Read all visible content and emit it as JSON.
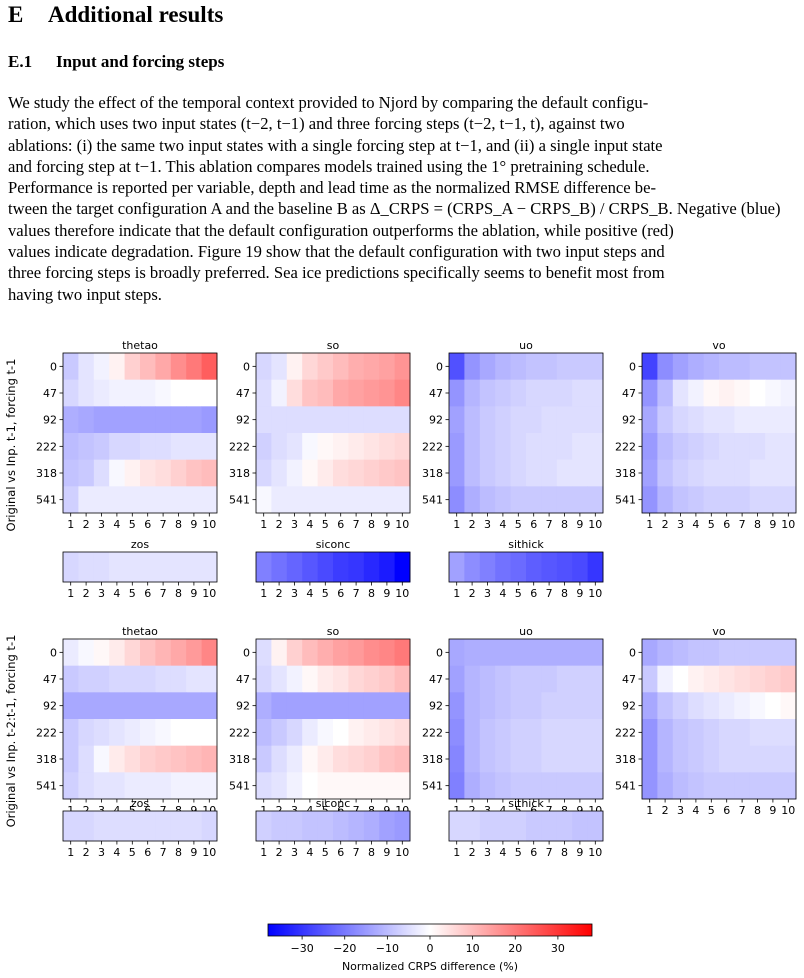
{
  "section": {
    "number": "E",
    "title": "Additional results"
  },
  "subsection": {
    "number": "E.1",
    "title": "Input and forcing steps"
  },
  "paragraph_lines": [
    "We study the effect of the temporal context provided to Njord by comparing the default configu-",
    "ration, which uses two input states (t−2, t−1) and three forcing steps (t−2, t−1, t), against two",
    "ablations: (i) the same two input states with a single forcing step at t−1, and (ii) a single input state",
    "and forcing step at t−1. This ablation compares models trained using the 1° pretraining schedule.",
    "Performance is reported per variable, depth and lead time as the normalized RMSE difference be-",
    "tween the target configuration A and the baseline B as Δ_CRPS = (CRPS_A − CRPS_B) / CRPS_B. Negative (blue)",
    "values therefore indicate that the default configuration outperforms the ablation, while positive (red)",
    "values indicate degradation. Figure 19 show that the default configuration with two input steps and",
    "three forcing steps is broadly preferred. Sea ice predictions specifically seems to benefit most from",
    "having two input steps."
  ],
  "chart_data": {
    "type": "heatmap",
    "depth_labels": [
      "0",
      "47",
      "92",
      "222",
      "318",
      "541"
    ],
    "lead_labels": [
      "1",
      "2",
      "3",
      "4",
      "5",
      "6",
      "7",
      "8",
      "9",
      "10"
    ],
    "colorbar": {
      "label": "Normalized CRPS difference (%)",
      "range": [
        -38,
        38
      ],
      "ticks": [
        -30,
        -20,
        -10,
        0,
        10,
        20,
        30
      ],
      "tick_labels": [
        "−30",
        "−20",
        "−10",
        "0",
        "10",
        "20",
        "30"
      ],
      "colormap": "bwr"
    },
    "panels": [
      {
        "row_label": "Original vs Inp. t-1, forcing t-1",
        "variables": [
          {
            "name": "thetao",
            "kind": "depth",
            "values": [
              [
                -8,
                -4,
                -2,
                2,
                7,
                10,
                13,
                17,
                20,
                24
              ],
              [
                -6,
                -4,
                -3,
                -2,
                -2,
                -2,
                -1,
                0,
                0,
                0
              ],
              [
                -12,
                -13,
                -14,
                -14,
                -14,
                -14,
                -14,
                -14,
                -14,
                -15
              ],
              [
                -10,
                -9,
                -8,
                -6,
                -6,
                -5,
                -5,
                -4,
                -4,
                -4
              ],
              [
                -9,
                -8,
                -5,
                -1,
                2,
                4,
                5,
                7,
                9,
                10
              ],
              [
                -7,
                -3,
                -3,
                -3,
                -3,
                -3,
                -3,
                -3,
                -3,
                -3
              ]
            ]
          },
          {
            "name": "so",
            "kind": "depth",
            "values": [
              [
                -6,
                -4,
                2,
                6,
                8,
                10,
                12,
                13,
                14,
                16
              ],
              [
                -5,
                -2,
                5,
                9,
                10,
                13,
                14,
                15,
                16,
                18
              ],
              [
                -5,
                -5,
                -5,
                -5,
                -5,
                -5,
                -5,
                -5,
                -5,
                -5
              ],
              [
                -7,
                -5,
                -4,
                -1,
                1,
                2,
                3,
                4,
                5,
                6
              ],
              [
                -6,
                -4,
                -2,
                1,
                3,
                5,
                6,
                7,
                8,
                9
              ],
              [
                -1,
                -3,
                -3,
                -3,
                -3,
                -3,
                -3,
                -3,
                -3,
                -3
              ]
            ]
          },
          {
            "name": "uo",
            "kind": "depth",
            "values": [
              [
                -26,
                -16,
                -13,
                -11,
                -10,
                -9,
                -9,
                -8,
                -8,
                -8
              ],
              [
                -16,
                -11,
                -9,
                -8,
                -7,
                -6,
                -6,
                -6,
                -5,
                -5
              ],
              [
                -14,
                -10,
                -8,
                -7,
                -6,
                -6,
                -5,
                -5,
                -5,
                -5
              ],
              [
                -15,
                -10,
                -8,
                -7,
                -6,
                -5,
                -5,
                -5,
                -4,
                -4
              ],
              [
                -15,
                -10,
                -8,
                -7,
                -6,
                -5,
                -5,
                -4,
                -4,
                -4
              ],
              [
                -17,
                -12,
                -10,
                -9,
                -8,
                -8,
                -8,
                -8,
                -8,
                -8
              ]
            ]
          },
          {
            "name": "vo",
            "kind": "depth",
            "values": [
              [
                -28,
                -17,
                -14,
                -12,
                -11,
                -10,
                -10,
                -9,
                -9,
                -9
              ],
              [
                -16,
                -10,
                -4,
                -2,
                1,
                2,
                1,
                0,
                -1,
                -2
              ],
              [
                -13,
                -8,
                -6,
                -5,
                -4,
                -4,
                -3,
                -3,
                -3,
                -3
              ],
              [
                -15,
                -10,
                -8,
                -7,
                -6,
                -5,
                -5,
                -5,
                -4,
                -4
              ],
              [
                -14,
                -9,
                -7,
                -6,
                -5,
                -5,
                -5,
                -4,
                -4,
                -4
              ],
              [
                -16,
                -11,
                -9,
                -8,
                -7,
                -7,
                -7,
                -6,
                -6,
                -6
              ]
            ]
          },
          {
            "name": "zos",
            "kind": "surface",
            "values": [
              -6,
              -5,
              -5,
              -4,
              -4,
              -4,
              -4,
              -4,
              -4,
              -4
            ]
          },
          {
            "name": "siconc",
            "kind": "surface",
            "values": [
              -19,
              -21,
              -23,
              -25,
              -27,
              -29,
              -30,
              -32,
              -34,
              -38
            ]
          },
          {
            "name": "sithick",
            "kind": "surface",
            "values": [
              -14,
              -17,
              -19,
              -21,
              -22,
              -24,
              -25,
              -26,
              -27,
              -30
            ]
          }
        ]
      },
      {
        "row_label": "Original vs Inp. t-2:t-1, forcing t-1",
        "variables": [
          {
            "name": "thetao",
            "kind": "depth",
            "values": [
              [
                -3,
                -1,
                1,
                3,
                6,
                9,
                11,
                13,
                15,
                18
              ],
              [
                -8,
                -7,
                -7,
                -6,
                -6,
                -6,
                -5,
                -5,
                -4,
                -4
              ],
              [
                -13,
                -13,
                -13,
                -13,
                -13,
                -13,
                -13,
                -13,
                -13,
                -13
              ],
              [
                -8,
                -6,
                -5,
                -4,
                -3,
                -2,
                -1,
                0,
                0,
                0
              ],
              [
                -8,
                -5,
                -1,
                3,
                5,
                7,
                8,
                9,
                10,
                11
              ],
              [
                -7,
                -5,
                -4,
                -4,
                -3,
                -3,
                -3,
                -2,
                -2,
                -2
              ]
            ]
          },
          {
            "name": "so",
            "kind": "depth",
            "values": [
              [
                -5,
                2,
                7,
                10,
                12,
                14,
                15,
                17,
                18,
                20
              ],
              [
                -6,
                -4,
                -2,
                1,
                3,
                4,
                6,
                7,
                8,
                10
              ],
              [
                -12,
                -14,
                -14,
                -14,
                -14,
                -14,
                -14,
                -14,
                -14,
                -14
              ],
              [
                -10,
                -8,
                -6,
                -3,
                -1,
                0,
                2,
                3,
                4,
                5
              ],
              [
                -8,
                -5,
                -3,
                1,
                3,
                5,
                6,
                7,
                9,
                10
              ],
              [
                -5,
                -4,
                -2,
                0,
                1,
                1,
                1,
                1,
                1,
                1
              ]
            ]
          },
          {
            "name": "uo",
            "kind": "depth",
            "values": [
              [
                -13,
                -12,
                -12,
                -12,
                -12,
                -12,
                -12,
                -12,
                -12,
                -12
              ],
              [
                -14,
                -11,
                -10,
                -9,
                -8,
                -8,
                -8,
                -7,
                -7,
                -7
              ],
              [
                -16,
                -11,
                -10,
                -9,
                -8,
                -8,
                -7,
                -7,
                -7,
                -7
              ],
              [
                -17,
                -11,
                -9,
                -8,
                -7,
                -7,
                -6,
                -6,
                -6,
                -6
              ],
              [
                -18,
                -11,
                -9,
                -8,
                -7,
                -7,
                -6,
                -6,
                -6,
                -6
              ],
              [
                -19,
                -12,
                -10,
                -9,
                -8,
                -8,
                -8,
                -8,
                -8,
                -8
              ]
            ]
          },
          {
            "name": "vo",
            "kind": "depth",
            "values": [
              [
                -13,
                -11,
                -10,
                -9,
                -9,
                -8,
                -8,
                -8,
                -8,
                -8
              ],
              [
                -8,
                -2,
                0,
                2,
                3,
                4,
                5,
                6,
                7,
                8
              ],
              [
                -13,
                -9,
                -7,
                -5,
                -4,
                -3,
                -2,
                -1,
                0,
                1
              ],
              [
                -16,
                -11,
                -9,
                -8,
                -7,
                -6,
                -6,
                -5,
                -5,
                -5
              ],
              [
                -16,
                -11,
                -9,
                -8,
                -7,
                -6,
                -6,
                -6,
                -6,
                -6
              ],
              [
                -16,
                -12,
                -10,
                -9,
                -8,
                -8,
                -8,
                -8,
                -8,
                -8
              ]
            ]
          },
          {
            "name": "zos",
            "kind": "surface",
            "values": [
              -6,
              -6,
              -5,
              -5,
              -5,
              -5,
              -5,
              -5,
              -5,
              -6
            ]
          },
          {
            "name": "siconc",
            "kind": "surface",
            "values": [
              -7,
              -8,
              -8,
              -9,
              -9,
              -10,
              -11,
              -12,
              -14,
              -15
            ]
          },
          {
            "name": "sithick",
            "kind": "surface",
            "values": [
              -6,
              -6,
              -7,
              -7,
              -7,
              -8,
              -8,
              -8,
              -9,
              -9
            ]
          }
        ]
      }
    ]
  }
}
